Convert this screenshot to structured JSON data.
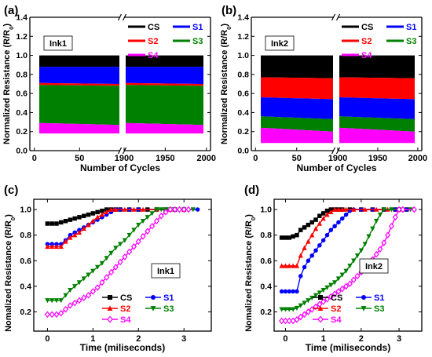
{
  "chart_data": [
    {
      "panel": "(a)",
      "type": "area",
      "label": "Ink1",
      "xlabel": "Number of Cycles",
      "ylabel_main": "Normalized Resistance (R/R",
      "ylabel_sub": "0",
      "ylabel_end": ")",
      "ylim": [
        0,
        1.4
      ],
      "yticks": [
        "0.0",
        "0.2",
        "0.4",
        "0.6",
        "0.8",
        "1.0",
        "1.2",
        "1.4"
      ],
      "x_break": true,
      "x_segments": [
        {
          "xlim": [
            -5,
            95
          ],
          "ticks": [
            0,
            50
          ],
          "tick_labels": [
            "0",
            "50"
          ]
        },
        {
          "xlim": [
            1900,
            2005
          ],
          "ticks": [
            1900,
            1950,
            2000
          ],
          "tick_labels": [
            "1900",
            "1950",
            "2000"
          ]
        }
      ],
      "legend": [
        {
          "name": "CS",
          "color": "#000000"
        },
        {
          "name": "S1",
          "color": "#0000ff"
        },
        {
          "name": "S2",
          "color": "#ff0000"
        },
        {
          "name": "S3",
          "color": "#008000"
        },
        {
          "name": "S4",
          "color": "#ff00ff"
        }
      ],
      "band_order_top_down": [
        "CS",
        "S1",
        "S2",
        "S3",
        "S4"
      ],
      "series": [
        {
          "name": "CS",
          "color": "#000000",
          "values_start": 1.0,
          "values_end": 1.0
        },
        {
          "name": "S1",
          "color": "#0000ff",
          "values_start": 0.88,
          "values_end": 0.88
        },
        {
          "name": "S2",
          "color": "#ff0000",
          "values_start": 0.71,
          "values_end": 0.7
        },
        {
          "name": "S3",
          "color": "#008000",
          "values_start": 0.69,
          "values_end": 0.68
        },
        {
          "name": "S4",
          "color": "#ff00ff",
          "values_start": 0.29,
          "values_end": 0.27
        }
      ],
      "baseline": 0.18
    },
    {
      "panel": "(b)",
      "type": "area",
      "label": "Ink2",
      "xlabel": "Number of Cycles",
      "ylabel_main": "Normalized Resistance (R/R",
      "ylabel_sub": "0",
      "ylabel_end": ")",
      "ylim": [
        0,
        1.4
      ],
      "yticks": [
        "0.0",
        "0.2",
        "0.4",
        "0.6",
        "0.8",
        "1.0",
        "1.2",
        "1.4"
      ],
      "x_break": true,
      "x_segments": [
        {
          "xlim": [
            -5,
            95
          ],
          "ticks": [
            0,
            50
          ],
          "tick_labels": [
            "0",
            "50"
          ]
        },
        {
          "xlim": [
            1900,
            2005
          ],
          "ticks": [
            1900,
            1950,
            2000
          ],
          "tick_labels": [
            "1900",
            "1950",
            "2000"
          ]
        }
      ],
      "legend": [
        {
          "name": "CS",
          "color": "#000000"
        },
        {
          "name": "S1",
          "color": "#0000ff"
        },
        {
          "name": "S2",
          "color": "#ff0000"
        },
        {
          "name": "S3",
          "color": "#008000"
        },
        {
          "name": "S4",
          "color": "#ff00ff"
        }
      ],
      "band_order_top_down": [
        "CS",
        "S2",
        "S1",
        "S3",
        "S4"
      ],
      "series": [
        {
          "name": "CS",
          "color": "#000000",
          "values_start": 1.0,
          "values_end": 1.0
        },
        {
          "name": "S2",
          "color": "#ff0000",
          "values_start": 0.77,
          "values_end": 0.76
        },
        {
          "name": "S1",
          "color": "#0000ff",
          "values_start": 0.56,
          "values_end": 0.54
        },
        {
          "name": "S3",
          "color": "#008000",
          "values_start": 0.36,
          "values_end": 0.33
        },
        {
          "name": "S4",
          "color": "#ff00ff",
          "values_start": 0.24,
          "values_end": 0.2
        }
      ],
      "baseline": 0.08
    },
    {
      "panel": "(c)",
      "type": "line",
      "label": "Ink1",
      "xlabel": "Time (miliseconds)",
      "ylabel_main": "Nomalized Resistance (R/R",
      "ylabel_sub": "0",
      "ylabel_end": ")",
      "xlim": [
        -0.3,
        3.6
      ],
      "ylim": [
        0.05,
        1.08
      ],
      "xticks": [
        0,
        1,
        2,
        3
      ],
      "yticks": [
        0.2,
        0.4,
        0.6,
        0.8,
        1.0
      ],
      "ytick_labels": [
        "0.2",
        "0.4",
        "0.6",
        "0.8",
        "1.0"
      ],
      "legend": [
        {
          "name": "CS",
          "color": "#000000",
          "marker": "square"
        },
        {
          "name": "S1",
          "color": "#0000ff",
          "marker": "circle"
        },
        {
          "name": "S2",
          "color": "#ff0000",
          "marker": "triangle-up"
        },
        {
          "name": "S3",
          "color": "#008000",
          "marker": "triangle-down"
        },
        {
          "name": "S4",
          "color": "#ff00ff",
          "marker": "diamond-open"
        }
      ],
      "series": [
        {
          "name": "CS",
          "color": "#000000",
          "marker": "square",
          "x": [
            0,
            0.1,
            0.2,
            0.3,
            0.4,
            0.5,
            0.6,
            0.7,
            0.8,
            0.9,
            1.0,
            1.1,
            1.2,
            1.3,
            1.4,
            1.5,
            1.6,
            1.8,
            2.0,
            2.2,
            2.4,
            2.6,
            2.8,
            3.0
          ],
          "y": [
            0.89,
            0.89,
            0.89,
            0.9,
            0.91,
            0.92,
            0.93,
            0.94,
            0.95,
            0.96,
            0.97,
            0.98,
            0.99,
            1.0,
            1.0,
            1.0,
            1.0,
            1.0,
            1.0,
            1.0,
            1.0,
            1.0,
            1.0,
            1.0
          ]
        },
        {
          "name": "S1",
          "color": "#0000ff",
          "marker": "circle",
          "x": [
            0,
            0.1,
            0.2,
            0.3,
            0.4,
            0.5,
            0.6,
            0.7,
            0.8,
            0.9,
            1.0,
            1.1,
            1.2,
            1.3,
            1.4,
            1.5,
            1.6,
            1.8,
            2.0,
            2.4,
            2.8,
            3.3
          ],
          "y": [
            0.73,
            0.73,
            0.73,
            0.73,
            0.76,
            0.8,
            0.82,
            0.84,
            0.86,
            0.88,
            0.9,
            0.92,
            0.94,
            0.96,
            0.98,
            1.0,
            1.0,
            1.0,
            1.0,
            1.0,
            1.0,
            1.0
          ]
        },
        {
          "name": "S2",
          "color": "#ff0000",
          "marker": "triangle-up",
          "x": [
            0,
            0.1,
            0.2,
            0.3,
            0.4,
            0.5,
            0.6,
            0.7,
            0.8,
            0.9,
            1.0,
            1.1,
            1.2,
            1.3,
            1.4,
            1.5,
            1.7,
            1.9,
            2.1,
            2.4,
            2.7,
            3.0
          ],
          "y": [
            0.71,
            0.71,
            0.71,
            0.71,
            0.75,
            0.78,
            0.8,
            0.82,
            0.85,
            0.88,
            0.91,
            0.94,
            0.96,
            0.98,
            1.0,
            1.0,
            1.0,
            1.0,
            1.0,
            1.0,
            1.0,
            1.0
          ]
        },
        {
          "name": "S3",
          "color": "#008000",
          "marker": "triangle-down",
          "x": [
            0,
            0.1,
            0.2,
            0.3,
            0.4,
            0.5,
            0.6,
            0.7,
            0.8,
            0.9,
            1.0,
            1.1,
            1.2,
            1.3,
            1.4,
            1.5,
            1.6,
            1.7,
            1.8,
            1.9,
            2.0,
            2.1,
            2.2,
            2.3,
            2.4,
            2.5,
            2.6,
            2.7,
            2.8,
            3.0,
            3.2
          ],
          "y": [
            0.29,
            0.29,
            0.29,
            0.29,
            0.33,
            0.37,
            0.4,
            0.43,
            0.46,
            0.49,
            0.52,
            0.55,
            0.58,
            0.62,
            0.66,
            0.7,
            0.73,
            0.76,
            0.8,
            0.84,
            0.88,
            0.91,
            0.94,
            0.97,
            1.0,
            1.0,
            1.0,
            1.0,
            1.0,
            1.0,
            1.0
          ]
        },
        {
          "name": "S4",
          "color": "#ff00ff",
          "marker": "diamond-open",
          "x": [
            0,
            0.1,
            0.2,
            0.3,
            0.4,
            0.5,
            0.6,
            0.7,
            0.8,
            0.9,
            1.0,
            1.1,
            1.2,
            1.3,
            1.4,
            1.5,
            1.6,
            1.7,
            1.8,
            1.9,
            2.0,
            2.1,
            2.2,
            2.3,
            2.4,
            2.5,
            2.6,
            2.7,
            2.8,
            2.9,
            3.0,
            3.1
          ],
          "y": [
            0.18,
            0.18,
            0.18,
            0.19,
            0.22,
            0.25,
            0.27,
            0.29,
            0.31,
            0.33,
            0.36,
            0.39,
            0.43,
            0.47,
            0.51,
            0.55,
            0.59,
            0.63,
            0.67,
            0.71,
            0.75,
            0.79,
            0.83,
            0.87,
            0.91,
            0.95,
            0.98,
            1.0,
            1.0,
            1.0,
            1.0,
            1.0
          ]
        }
      ]
    },
    {
      "panel": "(d)",
      "type": "line",
      "label": "Ink2",
      "xlabel": "Time (miliseconds)",
      "ylabel_main": "Nomalized Resistance (R/R",
      "ylabel_sub": "0",
      "ylabel_end": ")",
      "xlim": [
        -0.3,
        3.6
      ],
      "ylim": [
        0.05,
        1.08
      ],
      "xticks": [
        0,
        1,
        2,
        3
      ],
      "yticks": [
        0.2,
        0.4,
        0.6,
        0.8,
        1.0
      ],
      "ytick_labels": [
        "0.2",
        "0.4",
        "0.6",
        "0.8",
        "1.0"
      ],
      "legend": [
        {
          "name": "CS",
          "color": "#000000",
          "marker": "square"
        },
        {
          "name": "S1",
          "color": "#0000ff",
          "marker": "circle"
        },
        {
          "name": "S2",
          "color": "#ff0000",
          "marker": "triangle-up"
        },
        {
          "name": "S3",
          "color": "#008000",
          "marker": "triangle-down"
        },
        {
          "name": "S4",
          "color": "#ff00ff",
          "marker": "diamond-open"
        }
      ],
      "series": [
        {
          "name": "CS",
          "color": "#000000",
          "marker": "square",
          "x": [
            -0.1,
            0.0,
            0.1,
            0.2,
            0.3,
            0.4,
            0.5,
            0.6,
            0.7,
            0.8,
            0.9,
            1.0,
            1.1,
            1.2,
            1.3,
            1.4,
            1.5,
            1.7,
            2.0,
            2.3,
            2.6,
            2.9,
            3.2
          ],
          "y": [
            0.78,
            0.78,
            0.78,
            0.79,
            0.8,
            0.84,
            0.86,
            0.88,
            0.9,
            0.92,
            0.95,
            0.97,
            0.99,
            1.0,
            1.0,
            1.0,
            1.0,
            1.0,
            1.0,
            1.0,
            1.0,
            1.0,
            1.0
          ]
        },
        {
          "name": "S1",
          "color": "#0000ff",
          "marker": "circle",
          "x": [
            -0.1,
            0.0,
            0.1,
            0.2,
            0.3,
            0.4,
            0.5,
            0.6,
            0.7,
            0.8,
            0.9,
            1.0,
            1.1,
            1.2,
            1.3,
            1.4,
            1.5,
            1.6,
            1.7,
            1.8,
            2.0,
            2.3,
            2.6,
            2.9,
            3.2
          ],
          "y": [
            0.36,
            0.36,
            0.36,
            0.36,
            0.36,
            0.48,
            0.55,
            0.6,
            0.64,
            0.68,
            0.72,
            0.76,
            0.8,
            0.84,
            0.87,
            0.9,
            0.93,
            0.96,
            0.99,
            1.0,
            1.0,
            1.0,
            1.0,
            1.0,
            1.0
          ]
        },
        {
          "name": "S2",
          "color": "#ff0000",
          "marker": "triangle-up",
          "x": [
            -0.1,
            0.0,
            0.1,
            0.2,
            0.3,
            0.4,
            0.5,
            0.6,
            0.7,
            0.8,
            0.9,
            1.0,
            1.1,
            1.2,
            1.3,
            1.4,
            1.5,
            1.6,
            1.8,
            2.1,
            2.4,
            2.7,
            3.0
          ],
          "y": [
            0.56,
            0.56,
            0.56,
            0.56,
            0.56,
            0.64,
            0.7,
            0.75,
            0.8,
            0.85,
            0.89,
            0.93,
            0.96,
            0.98,
            1.0,
            1.0,
            1.0,
            1.0,
            1.0,
            1.0,
            1.0,
            1.0,
            1.0
          ]
        },
        {
          "name": "S3",
          "color": "#008000",
          "marker": "triangle-down",
          "x": [
            -0.1,
            0.0,
            0.1,
            0.2,
            0.3,
            0.4,
            0.5,
            0.6,
            0.7,
            0.8,
            0.9,
            1.0,
            1.1,
            1.2,
            1.3,
            1.4,
            1.5,
            1.6,
            1.7,
            1.8,
            1.9,
            2.0,
            2.1,
            2.2,
            2.3,
            2.4,
            2.5,
            2.6,
            2.8,
            3.0,
            3.3
          ],
          "y": [
            0.22,
            0.22,
            0.22,
            0.22,
            0.23,
            0.25,
            0.27,
            0.29,
            0.31,
            0.33,
            0.35,
            0.37,
            0.39,
            0.41,
            0.43,
            0.46,
            0.49,
            0.52,
            0.56,
            0.6,
            0.64,
            0.68,
            0.73,
            0.79,
            0.85,
            0.91,
            0.96,
            1.0,
            1.0,
            1.0,
            1.0
          ]
        },
        {
          "name": "S4",
          "color": "#ff00ff",
          "marker": "diamond-open",
          "x": [
            -0.1,
            0.0,
            0.1,
            0.2,
            0.3,
            0.4,
            0.5,
            0.6,
            0.7,
            0.8,
            0.9,
            1.0,
            1.1,
            1.2,
            1.3,
            1.4,
            1.5,
            1.6,
            1.7,
            1.8,
            1.9,
            2.0,
            2.1,
            2.2,
            2.3,
            2.4,
            2.5,
            2.6,
            2.7,
            2.8,
            2.9,
            3.0,
            3.1,
            3.4
          ],
          "y": [
            0.13,
            0.13,
            0.13,
            0.13,
            0.14,
            0.16,
            0.18,
            0.2,
            0.22,
            0.24,
            0.26,
            0.28,
            0.3,
            0.32,
            0.34,
            0.36,
            0.38,
            0.4,
            0.42,
            0.45,
            0.48,
            0.51,
            0.54,
            0.57,
            0.61,
            0.65,
            0.69,
            0.74,
            0.8,
            0.87,
            0.94,
            1.0,
            1.0,
            1.0
          ]
        }
      ]
    }
  ]
}
